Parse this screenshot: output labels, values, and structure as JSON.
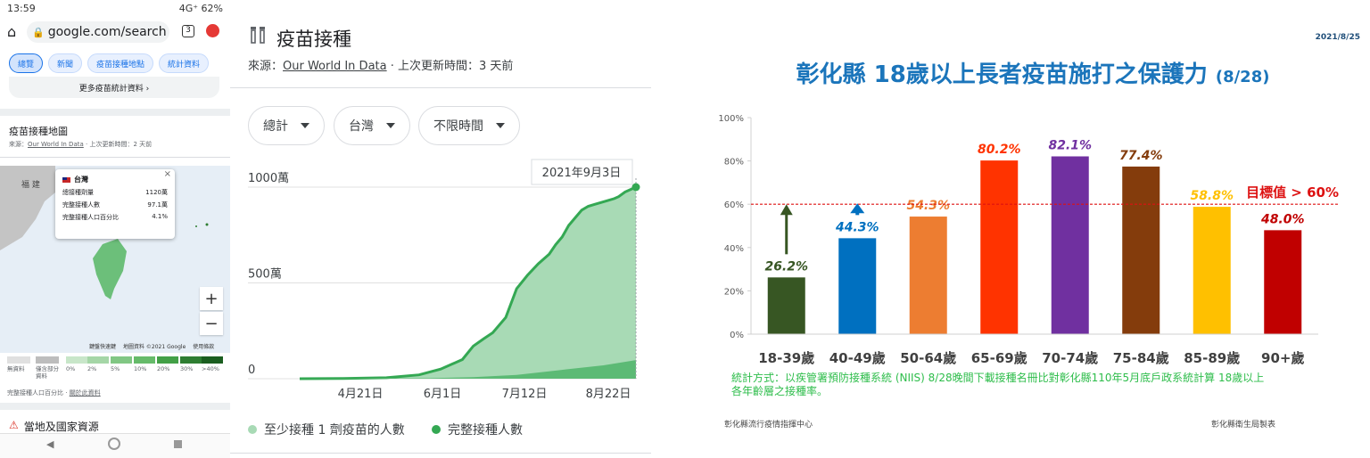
{
  "phone": {
    "status_time": "13:59",
    "status_right": "4G⁺  62%",
    "url": "google.com/search",
    "tab_count": "3",
    "chips": [
      "總覽",
      "新聞",
      "疫苗接種地點",
      "統計資料"
    ],
    "more_stats": "更多疫苗統計資料 ›",
    "map_title": "疫苗接種地圖",
    "map_source_prefix": "來源：",
    "map_source_link": "Our World In Data",
    "map_source_suffix": " · 上次更新時間：2 天前",
    "map_label_fujian": "福 建",
    "popup": {
      "name": "台灣",
      "close": "×",
      "rows": [
        {
          "label": "總接種劑量",
          "value": "1120萬"
        },
        {
          "label": "完整接種人數",
          "value": "97.1萬"
        },
        {
          "label": "完整接種人口百分比",
          "value": "4.1%"
        }
      ]
    },
    "zoom_in": "+",
    "zoom_out": "−",
    "map_attrib": [
      "鍵盤快速鍵",
      "地圖資料 ©2021 Google",
      "使用條款"
    ],
    "legend_labels": [
      "無資料",
      "僅含部分資料",
      "0%",
      "2%",
      "5%",
      "10%",
      "20%",
      "30%",
      ">40%"
    ],
    "legend_colors": [
      "#e0e0e0",
      "#bdbdbd",
      "#c8e6c9",
      "#a5d6a7",
      "#81c784",
      "#66bb6a",
      "#43a047",
      "#2e7d32",
      "#1b5e20"
    ],
    "legend_caption_prefix": "完整接種人口百分比 · ",
    "legend_caption_link": "關於此資料",
    "next_section": "當地及國家資源"
  },
  "card": {
    "title": "疫苗接種",
    "source_prefix": "來源：",
    "source_link": "Our World In Data",
    "source_suffix": " · 上次更新時間：3 天前",
    "dropdowns": [
      "總計",
      "台灣",
      "不限時間"
    ],
    "tooltip": "2021年9月3日",
    "legend": [
      {
        "label": "至少接種 1 劑疫苗的人數",
        "color": "#a8dab5"
      },
      {
        "label": "完整接種人數",
        "color": "#34a853"
      }
    ]
  },
  "chart_data": [
    {
      "type": "area",
      "title": "",
      "x_ticks": [
        "4月21日",
        "6月1日",
        "7月12日",
        "8月22日"
      ],
      "y_ticks": [
        "0",
        "500萬",
        "1000萬"
      ],
      "ylim": [
        0,
        1000
      ],
      "y_unit": "萬",
      "x_day_range": [
        0,
        155
      ],
      "x_tick_days": [
        48,
        89,
        130,
        171
      ],
      "series": [
        {
          "name": "至少接種 1 劑疫苗的人數",
          "x": [
            0,
            20,
            40,
            55,
            65,
            75,
            80,
            85,
            89,
            95,
            100,
            105,
            110,
            115,
            118,
            121,
            124,
            127,
            130,
            133,
            136,
            139,
            142,
            145,
            147,
            150,
            152,
            155
          ],
          "y": [
            0,
            1,
            5,
            20,
            50,
            100,
            170,
            210,
            240,
            320,
            470,
            540,
            600,
            650,
            700,
            740,
            800,
            840,
            880,
            900,
            910,
            920,
            930,
            940,
            950,
            975,
            985,
            1000
          ]
        },
        {
          "name": "完整接種人數",
          "x": [
            0,
            60,
            80,
            100,
            120,
            140,
            155
          ],
          "y": [
            0,
            3,
            8,
            20,
            45,
            70,
            97
          ]
        }
      ]
    },
    {
      "type": "bar",
      "date_stamp": "2021/8/25",
      "title": "彰化縣 18歲以上長者疫苗施打之保護力",
      "title_suffix": "(8/28)",
      "categories": [
        "18-39歲",
        "40-49歲",
        "50-64歲",
        "65-69歲",
        "70-74歲",
        "75-84歲",
        "85-89歲",
        "90+歲"
      ],
      "values": [
        26.2,
        44.3,
        54.3,
        80.2,
        82.1,
        77.4,
        58.8,
        48.0
      ],
      "value_labels": [
        "26.2%",
        "44.3%",
        "54.3%",
        "80.2%",
        "82.1%",
        "77.4%",
        "58.8%",
        "48.0%"
      ],
      "colors": [
        "#375623",
        "#0070c0",
        "#ed7d31",
        "#ff3300",
        "#7030a0",
        "#843c0c",
        "#ffc000",
        "#c00000"
      ],
      "label_colors": [
        "#375623",
        "#0070c0",
        "#ed7d31",
        "#ff3300",
        "#7030a0",
        "#843c0c",
        "#ffc000",
        "#c00000"
      ],
      "y_ticks": [
        "0%",
        "20%",
        "40%",
        "60%",
        "80%",
        "100%"
      ],
      "ylim": [
        0,
        100
      ],
      "target": 60,
      "target_label": "目標值 > 60%",
      "note": "統計方式：以疾管署預防接種系統 (NIIS) 8/28晚間下載接種名冊比對彰化縣110年5月底戶政系統計算 18歲以上各年齡層之接種率。",
      "footer_left": "彰化縣流行疫情指揮中心",
      "footer_right": "彰化縣衛生局製表"
    }
  ]
}
